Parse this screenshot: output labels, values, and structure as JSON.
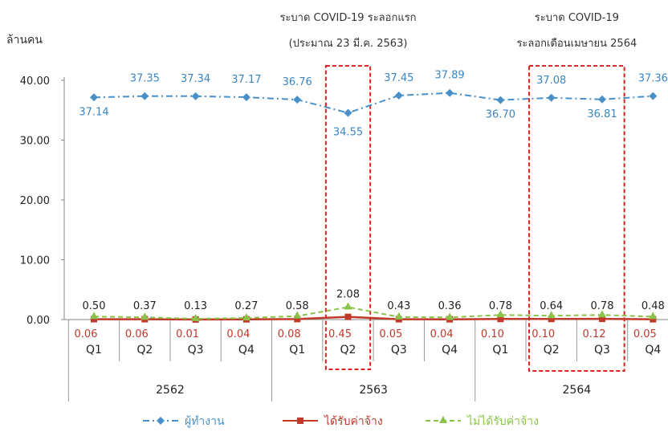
{
  "chart_data": {
    "type": "line",
    "ylabel": "ล้านคน",
    "ylim": [
      0,
      40
    ],
    "yticks": [
      "0.00",
      "10.00",
      "20.00",
      "30.00",
      "40.00"
    ],
    "categories": [
      "Q1",
      "Q2",
      "Q3",
      "Q4",
      "Q1",
      "Q2",
      "Q3",
      "Q4",
      "Q1",
      "Q2",
      "Q3",
      "Q4"
    ],
    "years": [
      {
        "label": "2562",
        "from": 0,
        "to": 3
      },
      {
        "label": "2563",
        "from": 4,
        "to": 7
      },
      {
        "label": "2564",
        "from": 8,
        "to": 11
      }
    ],
    "grid": false,
    "legend_position": "bottom",
    "series": [
      {
        "name": "ผู้ทำงาน",
        "color": "#4a90c8",
        "style": "dashdot",
        "marker": "diamond",
        "values": [
          37.14,
          37.35,
          37.34,
          37.17,
          36.76,
          34.55,
          37.45,
          37.89,
          36.7,
          37.08,
          36.81,
          37.36
        ],
        "labels": [
          "37.14",
          "37.35",
          "37.34",
          "37.17",
          "36.76",
          "34.55",
          "37.45",
          "37.89",
          "36.70",
          "37.08",
          "36.81",
          "37.36"
        ]
      },
      {
        "name": "ได้รับค่าจ้าง",
        "color": "#c0392b",
        "style": "solid",
        "marker": "square",
        "values": [
          0.06,
          0.06,
          0.01,
          0.04,
          0.08,
          0.45,
          0.05,
          0.04,
          0.1,
          0.1,
          0.12,
          0.05
        ],
        "labels": [
          "0.06",
          "0.06",
          "0.01",
          "0.04",
          "0.08",
          "0.45",
          "0.05",
          "0.04",
          "0.10",
          "0.10",
          "0.12",
          "0.05"
        ]
      },
      {
        "name": "ไม่ได้รับค่าจ้าง",
        "color": "#8bc34a",
        "style": "dashed",
        "marker": "triangle",
        "values": [
          0.5,
          0.37,
          0.13,
          0.27,
          0.58,
          2.08,
          0.43,
          0.36,
          0.78,
          0.64,
          0.78,
          0.48
        ],
        "labels": [
          "0.50",
          "0.37",
          "0.13",
          "0.27",
          "0.58",
          "2.08",
          "0.43",
          "0.36",
          "0.78",
          "0.64",
          "0.78",
          "0.48"
        ]
      }
    ],
    "annotations": [
      {
        "lines": [
          "ระบาด COVID-19 ระลอกแรก",
          "(ประมาณ 23 มี.ค. 2563)"
        ],
        "from": 5,
        "to": 5
      },
      {
        "lines": [
          "ระบาด COVID-19",
          "ระลอกเดือนเมษายน 2564"
        ],
        "from": 9,
        "to": 10
      }
    ]
  }
}
